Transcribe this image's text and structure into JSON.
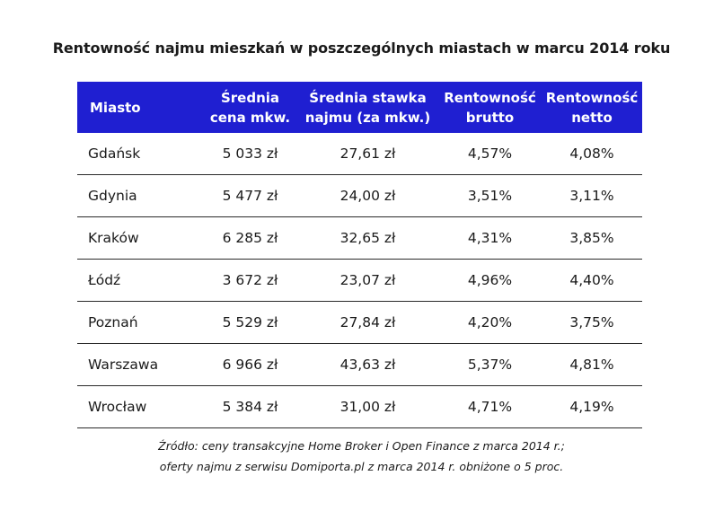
{
  "title": "Rentowność najmu mieszkań w poszczególnych miastach w marcu 2014 roku",
  "chart_data": {
    "type": "table",
    "title": "Rentowność najmu mieszkań w poszczególnych miastach w marcu 2014 roku",
    "header_color": "#1f1fd1",
    "columns": [
      [
        "Miasto"
      ],
      [
        "Średnia",
        "cena mkw."
      ],
      [
        "Średnia stawka",
        "najmu (za mkw.)"
      ],
      [
        "Rentowność",
        "brutto"
      ],
      [
        "Rentowność",
        "netto"
      ]
    ],
    "rows": [
      [
        "Gdańsk",
        "5 033 zł",
        "27,61 zł",
        "4,57%",
        "4,08%"
      ],
      [
        "Gdynia",
        "5 477 zł",
        "24,00 zł",
        "3,51%",
        "3,11%"
      ],
      [
        "Kraków",
        "6 285 zł",
        "32,65 zł",
        "4,31%",
        "3,85%"
      ],
      [
        "Łódź",
        "3 672 zł",
        "23,07 zł",
        "4,96%",
        "4,40%"
      ],
      [
        "Poznań",
        "5 529 zł",
        "27,84 zł",
        "4,20%",
        "3,75%"
      ],
      [
        "Warszawa",
        "6 966 zł",
        "43,63 zł",
        "5,37%",
        "4,81%"
      ],
      [
        "Wrocław",
        "5 384 zł",
        "31,00 zł",
        "4,71%",
        "4,19%"
      ]
    ]
  },
  "source": [
    "Źródło: ceny transakcyjne Home Broker i Open Finance z marca 2014 r.;",
    "oferty najmu z serwisu Domiporta.pl z marca 2014 r. obniżone o 5 proc."
  ]
}
